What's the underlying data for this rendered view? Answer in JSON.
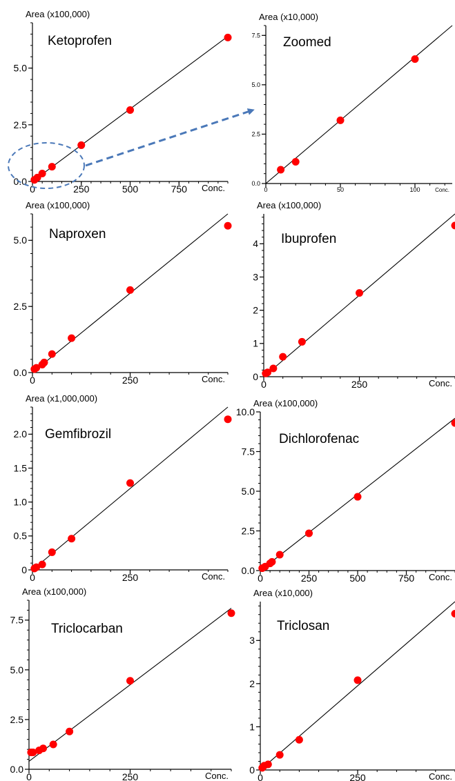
{
  "chart_data": [
    {
      "type": "scatter",
      "title": "Ketoprofen",
      "ylabel": "Area (x100,000)",
      "xlabel": "Conc.",
      "xlim": [
        0,
        1000
      ],
      "ylim": [
        0,
        7
      ],
      "xticks": [
        0,
        250,
        500,
        750
      ],
      "yticks": [
        0.0,
        2.5,
        5.0
      ],
      "ytick_labels": [
        "0.0",
        "2.5",
        "5.0"
      ],
      "points": [
        [
          10,
          0.07
        ],
        [
          25,
          0.17
        ],
        [
          50,
          0.35
        ],
        [
          100,
          0.65
        ],
        [
          250,
          1.6
        ],
        [
          500,
          3.15
        ],
        [
          1000,
          6.35
        ]
      ],
      "fit_line": [
        [
          0,
          0
        ],
        [
          1000,
          6.4
        ]
      ]
    },
    {
      "type": "scatter",
      "title": "Zoomed",
      "ylabel": "Area (x10,000)",
      "xlabel": "Conc.",
      "xlim": [
        0,
        125
      ],
      "ylim": [
        0,
        8
      ],
      "xticks": [
        0,
        50,
        100
      ],
      "yticks": [
        0.0,
        2.5,
        5.0,
        7.5
      ],
      "ytick_labels": [
        "0.0",
        "2.5",
        "5.0",
        "7.5"
      ],
      "points": [
        [
          10,
          0.7
        ],
        [
          20,
          1.1
        ],
        [
          50,
          3.2
        ],
        [
          100,
          6.3
        ]
      ],
      "fit_line": [
        [
          0,
          0
        ],
        [
          125,
          8.0
        ]
      ]
    },
    {
      "type": "scatter",
      "title": "Naproxen",
      "ylabel": "Area (x100,000)",
      "xlabel": "Conc.",
      "xlim": [
        0,
        500
      ],
      "ylim": [
        0,
        6
      ],
      "xticks": [
        0,
        250
      ],
      "yticks": [
        0.0,
        2.5,
        5.0
      ],
      "ytick_labels": [
        "0.0",
        "2.5",
        "5.0"
      ],
      "points": [
        [
          5,
          0.13
        ],
        [
          10,
          0.18
        ],
        [
          25,
          0.3
        ],
        [
          30,
          0.38
        ],
        [
          50,
          0.7
        ],
        [
          100,
          1.3
        ],
        [
          250,
          3.12
        ],
        [
          500,
          5.55
        ]
      ],
      "fit_line": [
        [
          0,
          0
        ],
        [
          500,
          6.0
        ]
      ]
    },
    {
      "type": "scatter",
      "title": "Ibuprofen",
      "ylabel": "Area (x100,000)",
      "xlabel": "Conc.",
      "xlim": [
        0,
        500
      ],
      "ylim": [
        0,
        4.9
      ],
      "xticks": [
        0,
        250
      ],
      "yticks": [
        0,
        1,
        2,
        3,
        4
      ],
      "ytick_labels": [
        "0",
        "1",
        "2",
        "3",
        "4"
      ],
      "points": [
        [
          5,
          0.1
        ],
        [
          10,
          0.13
        ],
        [
          25,
          0.25
        ],
        [
          50,
          0.6
        ],
        [
          100,
          1.05
        ],
        [
          250,
          2.52
        ],
        [
          500,
          4.55
        ]
      ],
      "fit_line": [
        [
          0,
          0
        ],
        [
          500,
          4.9
        ]
      ]
    },
    {
      "type": "scatter",
      "title": "Gemfibrozil",
      "ylabel": "Area (x1,000,000)",
      "xlabel": "Conc.",
      "xlim": [
        0,
        500
      ],
      "ylim": [
        0,
        2.4
      ],
      "xticks": [
        0,
        250
      ],
      "yticks": [
        0,
        0.5,
        1.0,
        1.5,
        2.0
      ],
      "ytick_labels": [
        "0",
        "0.5",
        "1.0",
        "1.5",
        "2.0"
      ],
      "points": [
        [
          5,
          0.02
        ],
        [
          10,
          0.04
        ],
        [
          25,
          0.08
        ],
        [
          50,
          0.26
        ],
        [
          100,
          0.46
        ],
        [
          250,
          1.28
        ],
        [
          500,
          2.22
        ]
      ],
      "fit_line": [
        [
          0,
          0
        ],
        [
          500,
          2.4
        ]
      ]
    },
    {
      "type": "scatter",
      "title": "Dichlorofenac",
      "ylabel": "Area (x100,000)",
      "xlabel": "Conc.",
      "xlim": [
        0,
        1000
      ],
      "ylim": [
        0,
        10.0
      ],
      "xticks": [
        0,
        250,
        500,
        750
      ],
      "yticks": [
        0.0,
        2.5,
        5.0,
        7.5,
        10.0
      ],
      "ytick_labels": [
        "0.0",
        "2.5",
        "5.0",
        "7.5",
        "10.0"
      ],
      "points": [
        [
          10,
          0.15
        ],
        [
          25,
          0.25
        ],
        [
          50,
          0.45
        ],
        [
          60,
          0.55
        ],
        [
          100,
          1.0
        ],
        [
          250,
          2.35
        ],
        [
          500,
          4.65
        ],
        [
          1000,
          9.3
        ]
      ],
      "fit_line": [
        [
          0,
          0
        ],
        [
          1000,
          9.6
        ]
      ]
    },
    {
      "type": "scatter",
      "title": "Triclocarban",
      "ylabel": "Area (x100,000)",
      "xlabel": "Conc.",
      "xlim": [
        0,
        500
      ],
      "ylim": [
        0,
        8.5
      ],
      "xticks": [
        0,
        250
      ],
      "yticks": [
        0.0,
        2.5,
        5.0,
        7.5
      ],
      "ytick_labels": [
        "0.0",
        "2.5",
        "5.0",
        "7.5"
      ],
      "points": [
        [
          5,
          0.85
        ],
        [
          10,
          0.85
        ],
        [
          25,
          0.95
        ],
        [
          35,
          1.05
        ],
        [
          60,
          1.25
        ],
        [
          100,
          1.9
        ],
        [
          250,
          4.45
        ],
        [
          500,
          7.85
        ]
      ],
      "fit_line": [
        [
          0,
          0.4
        ],
        [
          500,
          8.1
        ]
      ]
    },
    {
      "type": "scatter",
      "title": "Triclosan",
      "ylabel": "Area (x10,000)",
      "xlabel": "Conc.",
      "xlim": [
        0,
        500
      ],
      "ylim": [
        0,
        3.9
      ],
      "xticks": [
        0,
        250
      ],
      "yticks": [
        0,
        1,
        2,
        3
      ],
      "ytick_labels": [
        "0",
        "1",
        "2",
        "3"
      ],
      "points": [
        [
          5,
          0.05
        ],
        [
          10,
          0.1
        ],
        [
          20,
          0.13
        ],
        [
          50,
          0.35
        ],
        [
          100,
          0.7
        ],
        [
          250,
          2.08
        ],
        [
          500,
          3.62
        ]
      ],
      "fit_line": [
        [
          0,
          0
        ],
        [
          500,
          3.9
        ]
      ]
    }
  ],
  "colors": {
    "point": "#ff0000",
    "line": "#000000",
    "zoom_annotation": "#4a78b8"
  }
}
